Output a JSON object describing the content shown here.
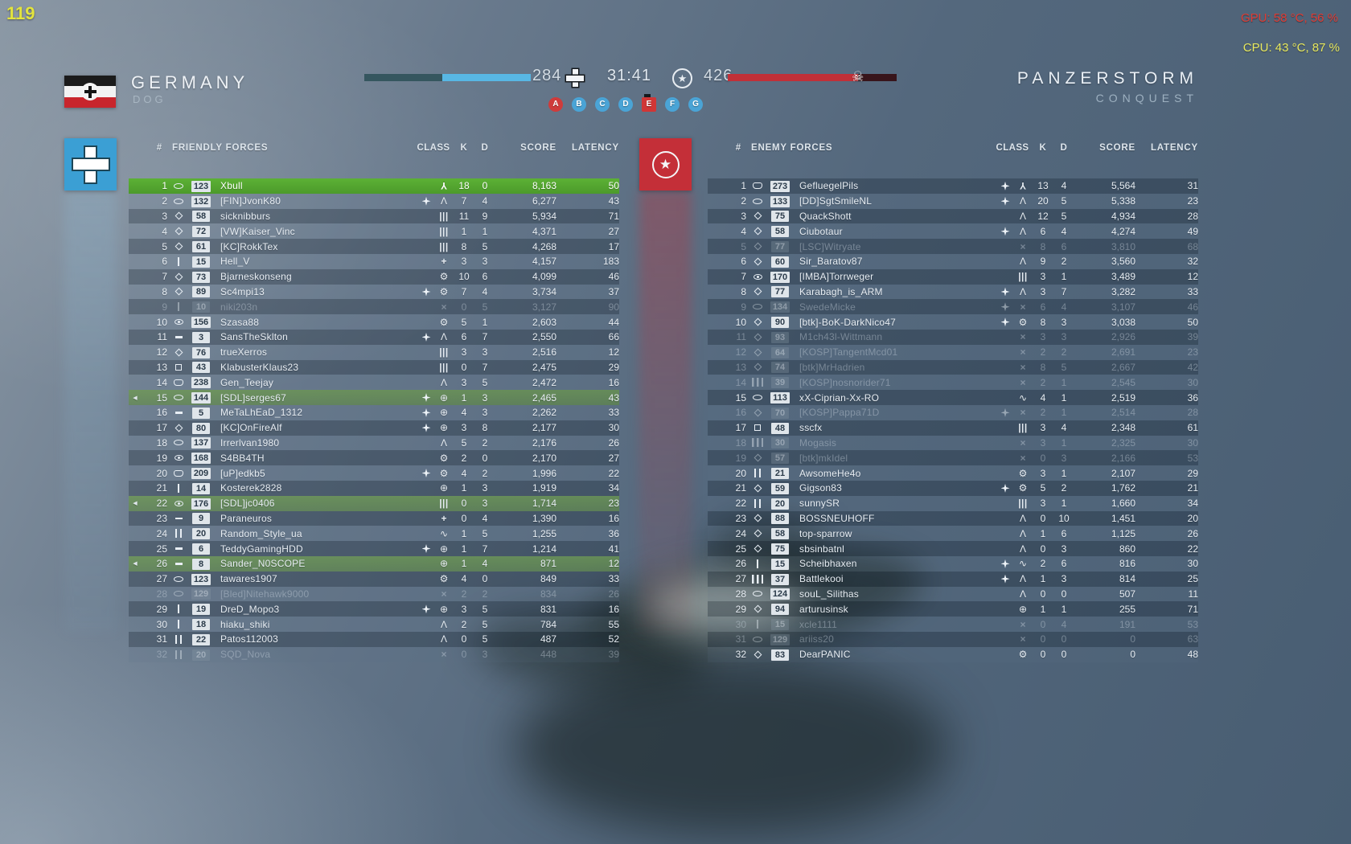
{
  "hud": {
    "fps": "119",
    "gpu": "GPU: 58 °C, 56 %",
    "cpu": "CPU: 43 °C, 87 %"
  },
  "header": {
    "team_name": "GERMANY",
    "squad_name": "DOG",
    "left_tickets": "284",
    "timer": "31:41",
    "right_tickets": "426",
    "map_name": "PANZERSTORM",
    "mode_name": "CONQUEST",
    "objectives": [
      {
        "label": "A",
        "type": "red-circle"
      },
      {
        "label": "B",
        "type": "blue-circle"
      },
      {
        "label": "C",
        "type": "blue-circle"
      },
      {
        "label": "D",
        "type": "blue-circle"
      },
      {
        "label": "E",
        "type": "red-square"
      },
      {
        "label": "F",
        "type": "blue-circle"
      },
      {
        "label": "G",
        "type": "blue-circle"
      }
    ]
  },
  "colors": {
    "friendly_accent": "#3b9fd4",
    "enemy_accent": "#c42f38",
    "self_row_green": "#55a62e",
    "squad_row_green": "#6c9e40",
    "ticket_bar_blue": "#58b7e4",
    "ticket_bar_red": "#c13038",
    "fps_yellow": "#e3e43e",
    "gpu_red": "#e03c34",
    "cpu_yellow": "#e8e95f"
  },
  "icons": {
    "voice_glyph": "◀",
    "star_glyph": "★",
    "skull_glyph": "☠",
    "class_glyphs": {
      "assault": "Λ",
      "medic": "+",
      "support": "|||",
      "recon": "⊕",
      "tanker": "⚙",
      "pilot": "Y",
      "pulse": "∿",
      "dead": "×"
    }
  },
  "left_table": {
    "hash": "#",
    "title": "FRIENDLY FORCES",
    "columns": [
      "CLASS",
      "K",
      "D",
      "SCORE",
      "LATENCY"
    ],
    "rows": [
      {
        "n": 1,
        "rk": "oval",
        "lvl": "123",
        "name": "Xbull",
        "cls": "pilot",
        "k": "18",
        "d": "0",
        "s": "8,163",
        "p": "50",
        "st": "self"
      },
      {
        "n": 2,
        "rk": "oval",
        "lvl": "132",
        "name": "[FIN]JvonK80",
        "ldr": true,
        "cls": "assault",
        "k": "7",
        "d": "4",
        "s": "6,277",
        "p": "43"
      },
      {
        "n": 3,
        "rk": "diamond",
        "lvl": "58",
        "name": "sicknibburs",
        "cls": "support",
        "k": "11",
        "d": "9",
        "s": "5,934",
        "p": "71"
      },
      {
        "n": 4,
        "rk": "diamond",
        "lvl": "72",
        "name": "[VW]Kaiser_Vinc",
        "cls": "support",
        "k": "1",
        "d": "1",
        "s": "4,371",
        "p": "27"
      },
      {
        "n": 5,
        "rk": "diamond",
        "lvl": "61",
        "name": "[KC]RokkTex",
        "cls": "support",
        "k": "8",
        "d": "5",
        "s": "4,268",
        "p": "17"
      },
      {
        "n": 6,
        "rk": "bar1",
        "lvl": "15",
        "name": "Hell_V",
        "cls": "medic",
        "k": "3",
        "d": "3",
        "s": "4,157",
        "p": "183"
      },
      {
        "n": 7,
        "rk": "diamond",
        "lvl": "73",
        "name": "Bjarneskonseng",
        "cls": "tanker",
        "k": "10",
        "d": "6",
        "s": "4,099",
        "p": "46"
      },
      {
        "n": 8,
        "rk": "diamond",
        "lvl": "89",
        "name": "Sc4mpi13",
        "ldr": true,
        "cls": "tanker",
        "k": "7",
        "d": "4",
        "s": "3,734",
        "p": "37"
      },
      {
        "n": 9,
        "rk": "bar1",
        "lvl": "10",
        "name": "niki203n",
        "cls": "dead",
        "k": "0",
        "d": "5",
        "s": "3,127",
        "p": "90",
        "st": "dead"
      },
      {
        "n": 10,
        "rk": "eye",
        "lvl": "156",
        "name": "Szasa88",
        "cls": "tanker",
        "k": "5",
        "d": "1",
        "s": "2,603",
        "p": "44"
      },
      {
        "n": 11,
        "rk": "dash",
        "lvl": "3",
        "name": "SansTheSklton",
        "ldr": true,
        "cls": "assault",
        "k": "6",
        "d": "7",
        "s": "2,550",
        "p": "66"
      },
      {
        "n": 12,
        "rk": "diamond",
        "lvl": "76",
        "name": "trueXerros",
        "cls": "support",
        "k": "3",
        "d": "3",
        "s": "2,516",
        "p": "12"
      },
      {
        "n": 13,
        "rk": "square",
        "lvl": "43",
        "name": "KlabusterKlaus23",
        "cls": "support",
        "k": "0",
        "d": "7",
        "s": "2,475",
        "p": "29"
      },
      {
        "n": 14,
        "rk": "shield",
        "lvl": "238",
        "name": "Gen_Teejay",
        "cls": "assault",
        "k": "3",
        "d": "5",
        "s": "2,472",
        "p": "16"
      },
      {
        "n": 15,
        "rk": "oval",
        "lvl": "144",
        "name": "[SDL]serges67",
        "v": true,
        "ldr": true,
        "cls": "recon",
        "k": "1",
        "d": "3",
        "s": "2,465",
        "p": "43",
        "st": "squad"
      },
      {
        "n": 16,
        "rk": "dash",
        "lvl": "5",
        "name": "MeTaLhEaD_1312",
        "ldr": true,
        "cls": "recon",
        "k": "4",
        "d": "3",
        "s": "2,262",
        "p": "33"
      },
      {
        "n": 17,
        "rk": "diamond",
        "lvl": "80",
        "name": "[KC]OnFireAlf",
        "ldr": true,
        "cls": "recon",
        "k": "3",
        "d": "8",
        "s": "2,177",
        "p": "30"
      },
      {
        "n": 18,
        "rk": "oval",
        "lvl": "137",
        "name": "Irrerlvan1980",
        "cls": "assault",
        "k": "5",
        "d": "2",
        "s": "2,176",
        "p": "26"
      },
      {
        "n": 19,
        "rk": "eye",
        "lvl": "168",
        "name": "S4BB4TH",
        "cls": "tanker",
        "k": "2",
        "d": "0",
        "s": "2,170",
        "p": "27"
      },
      {
        "n": 20,
        "rk": "shield",
        "lvl": "209",
        "name": "[uP]edkb5",
        "ldr": true,
        "cls": "tanker",
        "k": "4",
        "d": "2",
        "s": "1,996",
        "p": "22"
      },
      {
        "n": 21,
        "rk": "bar1",
        "lvl": "14",
        "name": "Kosterek2828",
        "cls": "recon",
        "k": "1",
        "d": "3",
        "s": "1,919",
        "p": "34"
      },
      {
        "n": 22,
        "rk": "eye",
        "lvl": "176",
        "name": "[SDL]jc0406",
        "v": true,
        "cls": "support",
        "k": "0",
        "d": "3",
        "s": "1,714",
        "p": "23",
        "st": "squad"
      },
      {
        "n": 23,
        "rk": "dash",
        "lvl": "9",
        "name": "Paraneuros",
        "cls": "medic",
        "k": "0",
        "d": "4",
        "s": "1,390",
        "p": "16"
      },
      {
        "n": 24,
        "rk": "bar2",
        "lvl": "20",
        "name": "Random_Style_ua",
        "cls": "pulse",
        "k": "1",
        "d": "5",
        "s": "1,255",
        "p": "36"
      },
      {
        "n": 25,
        "rk": "dash",
        "lvl": "6",
        "name": "TeddyGamingHDD",
        "ldr": true,
        "cls": "recon",
        "k": "1",
        "d": "7",
        "s": "1,214",
        "p": "41"
      },
      {
        "n": 26,
        "rk": "dash",
        "lvl": "8",
        "name": "Sander_N0SCOPE",
        "v": true,
        "cls": "recon",
        "k": "1",
        "d": "4",
        "s": "871",
        "p": "12",
        "st": "squad"
      },
      {
        "n": 27,
        "rk": "oval",
        "lvl": "123",
        "name": "tawares1907",
        "cls": "tanker",
        "k": "4",
        "d": "0",
        "s": "849",
        "p": "33"
      },
      {
        "n": 28,
        "rk": "oval",
        "lvl": "129",
        "name": "[Bled]Nitehawk9000",
        "cls": "dead",
        "k": "2",
        "d": "2",
        "s": "834",
        "p": "26",
        "st": "dead"
      },
      {
        "n": 29,
        "rk": "bar1",
        "lvl": "19",
        "name": "DreD_Mopo3",
        "ldr": true,
        "cls": "recon",
        "k": "3",
        "d": "5",
        "s": "831",
        "p": "16"
      },
      {
        "n": 30,
        "rk": "bar1",
        "lvl": "18",
        "name": "hiaku_shiki",
        "cls": "assault",
        "k": "2",
        "d": "5",
        "s": "784",
        "p": "55"
      },
      {
        "n": 31,
        "rk": "bar2",
        "lvl": "22",
        "name": "Patos112003",
        "cls": "assault",
        "k": "0",
        "d": "5",
        "s": "487",
        "p": "52"
      },
      {
        "n": 32,
        "rk": "bar2",
        "lvl": "20",
        "name": "SQD_Nova",
        "cls": "dead",
        "k": "0",
        "d": "3",
        "s": "448",
        "p": "39",
        "st": "dead"
      }
    ]
  },
  "right_table": {
    "hash": "#",
    "title": "ENEMY FORCES",
    "columns": [
      "CLASS",
      "K",
      "D",
      "SCORE",
      "LATENCY"
    ],
    "rows": [
      {
        "n": 1,
        "rk": "shield",
        "lvl": "273",
        "name": "GefluegelPils",
        "ldr": true,
        "cls": "pilot",
        "k": "13",
        "d": "4",
        "s": "5,564",
        "p": "31"
      },
      {
        "n": 2,
        "rk": "oval",
        "lvl": "133",
        "name": "[DD]SgtSmileNL",
        "ldr": true,
        "cls": "assault",
        "k": "20",
        "d": "5",
        "s": "5,338",
        "p": "23"
      },
      {
        "n": 3,
        "rk": "diamond",
        "lvl": "75",
        "name": "QuackShott",
        "cls": "assault",
        "k": "12",
        "d": "5",
        "s": "4,934",
        "p": "28"
      },
      {
        "n": 4,
        "rk": "diamond",
        "lvl": "58",
        "name": "Ciubotaur",
        "ldr": true,
        "cls": "assault",
        "k": "6",
        "d": "4",
        "s": "4,274",
        "p": "49"
      },
      {
        "n": 5,
        "rk": "diamond",
        "lvl": "77",
        "name": "[LSC]Witryate",
        "cls": "dead",
        "k": "8",
        "d": "6",
        "s": "3,810",
        "p": "68",
        "st": "dead"
      },
      {
        "n": 6,
        "rk": "diamond",
        "lvl": "60",
        "name": "Sir_Baratov87",
        "cls": "assault",
        "k": "9",
        "d": "2",
        "s": "3,560",
        "p": "32"
      },
      {
        "n": 7,
        "rk": "eye",
        "lvl": "170",
        "name": "[IMBA]Torrweger",
        "cls": "support",
        "k": "3",
        "d": "1",
        "s": "3,489",
        "p": "12"
      },
      {
        "n": 8,
        "rk": "diamond",
        "lvl": "77",
        "name": "Karabagh_is_ARM",
        "ldr": true,
        "cls": "assault",
        "k": "3",
        "d": "7",
        "s": "3,282",
        "p": "33"
      },
      {
        "n": 9,
        "rk": "oval",
        "lvl": "134",
        "name": "SwedeMicke",
        "ldr": true,
        "cls": "dead",
        "k": "6",
        "d": "4",
        "s": "3,107",
        "p": "46",
        "st": "dead"
      },
      {
        "n": 10,
        "rk": "diamond",
        "lvl": "90",
        "name": "[btk]-BoK-DarkNico47",
        "ldr": true,
        "cls": "tanker",
        "k": "8",
        "d": "3",
        "s": "3,038",
        "p": "50"
      },
      {
        "n": 11,
        "rk": "diamond",
        "lvl": "93",
        "name": "M1ch43l-Wittmann",
        "cls": "dead",
        "k": "3",
        "d": "3",
        "s": "2,926",
        "p": "39",
        "st": "dead"
      },
      {
        "n": 12,
        "rk": "diamond",
        "lvl": "64",
        "name": "[KOSP]TangentMcd01",
        "cls": "dead",
        "k": "2",
        "d": "2",
        "s": "2,691",
        "p": "23",
        "st": "dead"
      },
      {
        "n": 13,
        "rk": "diamond",
        "lvl": "74",
        "name": "[btk]MrHadrien",
        "cls": "dead",
        "k": "8",
        "d": "5",
        "s": "2,667",
        "p": "42",
        "st": "dead"
      },
      {
        "n": 14,
        "rk": "bar3",
        "lvl": "39",
        "name": "[KOSP]nosnorider71",
        "cls": "dead",
        "k": "2",
        "d": "1",
        "s": "2,545",
        "p": "30",
        "st": "dead"
      },
      {
        "n": 15,
        "rk": "oval",
        "lvl": "113",
        "name": "xX-Ciprian-Xx-RO",
        "cls": "pulse",
        "k": "4",
        "d": "1",
        "s": "2,519",
        "p": "36"
      },
      {
        "n": 16,
        "rk": "diamond",
        "lvl": "70",
        "name": "[KOSP]Pappa71D",
        "ldr": true,
        "cls": "dead",
        "k": "2",
        "d": "1",
        "s": "2,514",
        "p": "28",
        "st": "dead"
      },
      {
        "n": 17,
        "rk": "square",
        "lvl": "48",
        "name": "sscfx",
        "cls": "support",
        "k": "3",
        "d": "4",
        "s": "2,348",
        "p": "61"
      },
      {
        "n": 18,
        "rk": "bar3",
        "lvl": "30",
        "name": "Mogasis",
        "cls": "dead",
        "k": "3",
        "d": "1",
        "s": "2,325",
        "p": "30",
        "st": "dead"
      },
      {
        "n": 19,
        "rk": "diamond",
        "lvl": "57",
        "name": "[btk]mkIdel",
        "cls": "dead",
        "k": "0",
        "d": "3",
        "s": "2,166",
        "p": "53",
        "st": "dead"
      },
      {
        "n": 20,
        "rk": "bar2",
        "lvl": "21",
        "name": "AwsomeHe4o",
        "cls": "tanker",
        "k": "3",
        "d": "1",
        "s": "2,107",
        "p": "29"
      },
      {
        "n": 21,
        "rk": "diamond",
        "lvl": "59",
        "name": "Gigson83",
        "ldr": true,
        "cls": "tanker",
        "k": "5",
        "d": "2",
        "s": "1,762",
        "p": "21"
      },
      {
        "n": 22,
        "rk": "bar2",
        "lvl": "20",
        "name": "sunnySR",
        "cls": "support",
        "k": "3",
        "d": "1",
        "s": "1,660",
        "p": "34"
      },
      {
        "n": 23,
        "rk": "diamond",
        "lvl": "88",
        "name": "BOSSNEUHOFF",
        "cls": "assault",
        "k": "0",
        "d": "10",
        "s": "1,451",
        "p": "20"
      },
      {
        "n": 24,
        "rk": "diamond",
        "lvl": "58",
        "name": "top-sparrow",
        "cls": "assault",
        "k": "1",
        "d": "6",
        "s": "1,125",
        "p": "26"
      },
      {
        "n": 25,
        "rk": "diamond",
        "lvl": "75",
        "name": "sbsinbatnl",
        "cls": "assault",
        "k": "0",
        "d": "3",
        "s": "860",
        "p": "22"
      },
      {
        "n": 26,
        "rk": "bar1",
        "lvl": "15",
        "name": "Scheibhaxen",
        "ldr": true,
        "cls": "pulse",
        "k": "2",
        "d": "6",
        "s": "816",
        "p": "30"
      },
      {
        "n": 27,
        "rk": "bar3",
        "lvl": "37",
        "name": "Battlekooi",
        "ldr": true,
        "cls": "assault",
        "k": "1",
        "d": "3",
        "s": "814",
        "p": "25"
      },
      {
        "n": 28,
        "rk": "oval",
        "lvl": "124",
        "name": "souL_Silithas",
        "cls": "assault",
        "k": "0",
        "d": "0",
        "s": "507",
        "p": "11"
      },
      {
        "n": 29,
        "rk": "diamond",
        "lvl": "94",
        "name": "arturusinsk",
        "cls": "recon",
        "k": "1",
        "d": "1",
        "s": "255",
        "p": "71"
      },
      {
        "n": 30,
        "rk": "bar1",
        "lvl": "15",
        "name": "xcle1111",
        "cls": "dead",
        "k": "0",
        "d": "4",
        "s": "191",
        "p": "53",
        "st": "dead"
      },
      {
        "n": 31,
        "rk": "oval",
        "lvl": "129",
        "name": "ariiss20",
        "cls": "dead",
        "k": "0",
        "d": "0",
        "s": "0",
        "p": "63",
        "st": "dead"
      },
      {
        "n": 32,
        "rk": "diamond",
        "lvl": "83",
        "name": "DearPANIC",
        "cls": "tanker",
        "k": "0",
        "d": "0",
        "s": "0",
        "p": "48"
      }
    ]
  }
}
